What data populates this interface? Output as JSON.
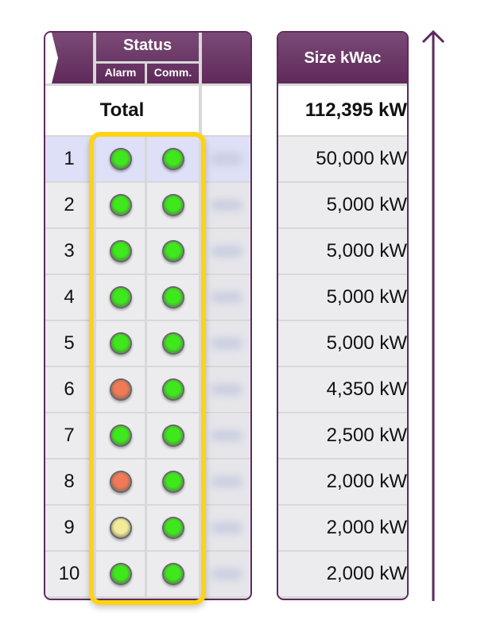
{
  "left_table": {
    "header": {
      "status": "Status",
      "alarm": "Alarm",
      "comm": "Comm."
    },
    "total_label": "Total",
    "rows": [
      {
        "index": "1",
        "alarm": "green",
        "comm": "green",
        "selected": true
      },
      {
        "index": "2",
        "alarm": "green",
        "comm": "green"
      },
      {
        "index": "3",
        "alarm": "green",
        "comm": "green"
      },
      {
        "index": "4",
        "alarm": "green",
        "comm": "green"
      },
      {
        "index": "5",
        "alarm": "green",
        "comm": "green"
      },
      {
        "index": "6",
        "alarm": "red",
        "comm": "green"
      },
      {
        "index": "7",
        "alarm": "green",
        "comm": "green"
      },
      {
        "index": "8",
        "alarm": "red",
        "comm": "green"
      },
      {
        "index": "9",
        "alarm": "yellow",
        "comm": "green"
      },
      {
        "index": "10",
        "alarm": "green",
        "comm": "green"
      }
    ]
  },
  "right_table": {
    "header": "Size kWac",
    "total": "112,395 kW",
    "values": [
      "50,000 kW",
      "5,000 kW",
      "5,000 kW",
      "5,000 kW",
      "5,000 kW",
      "4,350 kW",
      "2,500 kW",
      "2,000 kW",
      "2,000 kW",
      "2,000 kW"
    ]
  },
  "colors": {
    "header": "#6a3566",
    "highlight": "#fdd312",
    "led_green": "#3ee81c",
    "led_red": "#f07a55",
    "led_yellow": "#f2ec9a",
    "arrow": "#5e2a5e"
  },
  "icons": {
    "sort_arrow": "arrow-up-icon",
    "expand": "chevron-right-icon"
  }
}
